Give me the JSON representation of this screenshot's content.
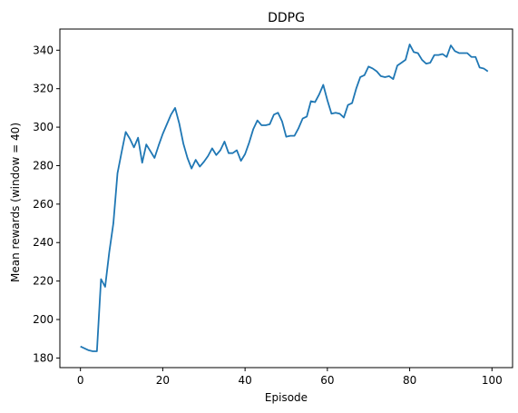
{
  "chart_data": {
    "type": "line",
    "title": "DDPG",
    "xlabel": "Episode",
    "ylabel": "Mean rewards (window = 40)",
    "xlim": [
      -5,
      105
    ],
    "ylim": [
      175,
      351
    ],
    "xticks": [
      0,
      20,
      40,
      60,
      80,
      100
    ],
    "yticks": [
      180,
      200,
      220,
      240,
      260,
      280,
      300,
      320,
      340
    ],
    "grid": false,
    "series": [
      {
        "color": "#1f77b4",
        "x": [
          0,
          1,
          2,
          3,
          4,
          5,
          6,
          7,
          8,
          9,
          10,
          11,
          12,
          13,
          14,
          15,
          16,
          17,
          18,
          19,
          20,
          21,
          22,
          23,
          24,
          25,
          26,
          27,
          28,
          29,
          30,
          31,
          32,
          33,
          34,
          35,
          36,
          37,
          38,
          39,
          40,
          41,
          42,
          43,
          44,
          45,
          46,
          47,
          48,
          49,
          50,
          51,
          52,
          53,
          54,
          55,
          56,
          57,
          58,
          59,
          60,
          61,
          62,
          63,
          64,
          65,
          66,
          67,
          68,
          69,
          70,
          71,
          72,
          73,
          74,
          75,
          76,
          77,
          78,
          79,
          80,
          81,
          82,
          83,
          84,
          85,
          86,
          87,
          88,
          89,
          90,
          91,
          92,
          93,
          94,
          95,
          96,
          97,
          98,
          99
        ],
        "y": [
          186,
          185,
          184,
          183.5,
          183.5,
          221,
          217,
          235,
          250,
          276,
          287,
          297.5,
          294,
          289.5,
          294.5,
          281.5,
          291,
          287.5,
          284,
          290.5,
          296.5,
          301.5,
          306.5,
          310,
          302,
          291.5,
          284,
          278.5,
          283,
          279.5,
          282,
          285,
          289,
          285.5,
          288,
          292.5,
          286.5,
          286.5,
          288,
          282.5,
          286,
          292,
          299,
          303.5,
          301,
          301,
          301.5,
          306.5,
          307.5,
          303,
          295,
          295.5,
          295.5,
          299.5,
          304.5,
          305.5,
          313.5,
          313,
          317,
          322,
          314,
          307,
          307.5,
          307,
          305,
          311.5,
          312.5,
          320,
          326,
          327,
          331.5,
          330.5,
          329,
          326.5,
          326,
          326.5,
          325,
          332,
          333.5,
          335,
          343,
          339,
          338.5,
          335,
          333,
          333.5,
          337.5,
          337.5,
          338,
          336.5,
          342.5,
          339.5,
          338.5,
          338.5,
          338.5,
          336.5,
          336.5,
          331,
          330.5,
          329
        ]
      }
    ]
  }
}
